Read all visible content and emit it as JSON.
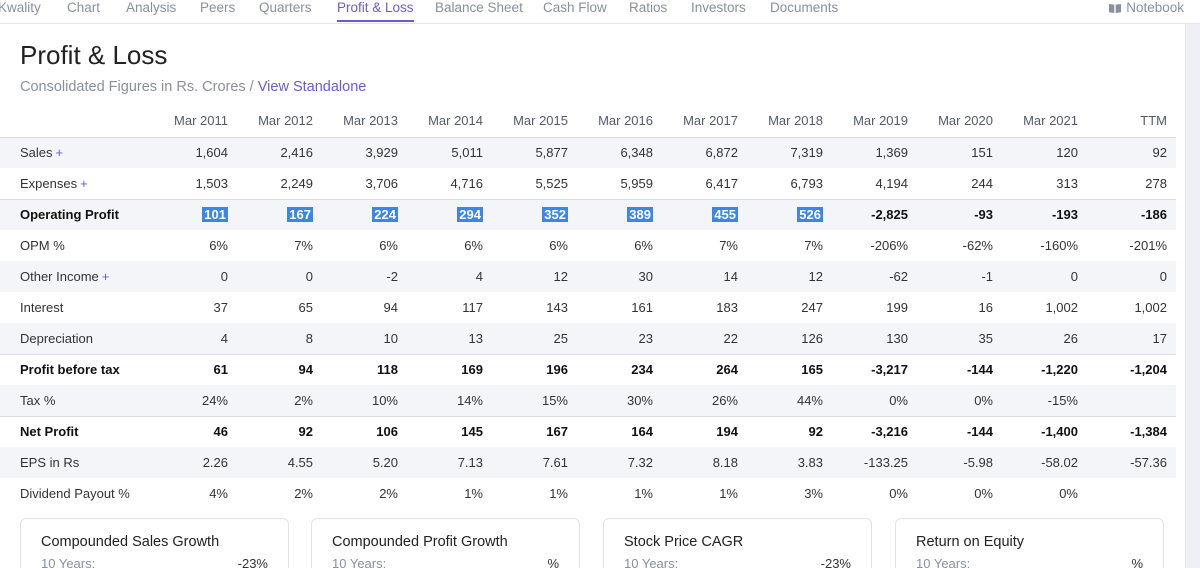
{
  "nav": {
    "tabs": [
      {
        "label": "Kwality"
      },
      {
        "label": "Chart"
      },
      {
        "label": "Analysis"
      },
      {
        "label": "Peers"
      },
      {
        "label": "Quarters"
      },
      {
        "label": "Profit & Loss"
      },
      {
        "label": "Balance Sheet"
      },
      {
        "label": "Cash Flow"
      },
      {
        "label": "Ratios"
      },
      {
        "label": "Investors"
      },
      {
        "label": "Documents"
      }
    ],
    "active_tab": "Profit & Loss",
    "notebook_label": "Notebook"
  },
  "section": {
    "title": "Profit & Loss",
    "subtitle": "Consolidated Figures in Rs. Crores / ",
    "link": "View Standalone"
  },
  "table": {
    "columns": [
      "",
      "Mar 2011",
      "Mar 2012",
      "Mar 2013",
      "Mar 2014",
      "Mar 2015",
      "Mar 2016",
      "Mar 2017",
      "Mar 2018",
      "Mar 2019",
      "Mar 2020",
      "Mar 2021",
      "TTM"
    ],
    "rows": [
      {
        "label": "Sales",
        "plus": "+",
        "values": [
          "1,604",
          "2,416",
          "3,929",
          "5,011",
          "5,877",
          "6,348",
          "6,872",
          "7,319",
          "1,369",
          "151",
          "120",
          "92"
        ]
      },
      {
        "label": "Expenses",
        "plus": "+",
        "values": [
          "1,503",
          "2,249",
          "3,706",
          "4,716",
          "5,525",
          "5,959",
          "6,417",
          "6,793",
          "4,194",
          "244",
          "313",
          "278"
        ]
      },
      {
        "label": "Operating Profit",
        "values": [
          "101",
          "167",
          "224",
          "294",
          "352",
          "389",
          "455",
          "526",
          "-2,825",
          "-93",
          "-193",
          "-186"
        ]
      },
      {
        "label": "OPM %",
        "values": [
          "6%",
          "7%",
          "6%",
          "6%",
          "6%",
          "6%",
          "7%",
          "7%",
          "-206%",
          "-62%",
          "-160%",
          "-201%"
        ]
      },
      {
        "label": "Other Income",
        "plus": "+",
        "values": [
          "0",
          "0",
          "-2",
          "4",
          "12",
          "30",
          "14",
          "12",
          "-62",
          "-1",
          "0",
          "0"
        ]
      },
      {
        "label": "Interest",
        "values": [
          "37",
          "65",
          "94",
          "117",
          "143",
          "161",
          "183",
          "247",
          "199",
          "16",
          "1,002",
          "1,002"
        ]
      },
      {
        "label": "Depreciation",
        "values": [
          "4",
          "8",
          "10",
          "13",
          "25",
          "23",
          "22",
          "126",
          "130",
          "35",
          "26",
          "17"
        ]
      },
      {
        "label": "Profit before tax",
        "values": [
          "61",
          "94",
          "118",
          "169",
          "196",
          "234",
          "264",
          "165",
          "-3,217",
          "-144",
          "-1,220",
          "-1,204"
        ]
      },
      {
        "label": "Tax %",
        "values": [
          "24%",
          "2%",
          "10%",
          "14%",
          "15%",
          "30%",
          "26%",
          "44%",
          "0%",
          "0%",
          "-15%",
          ""
        ]
      },
      {
        "label": "Net Profit",
        "values": [
          "46",
          "92",
          "106",
          "145",
          "167",
          "164",
          "194",
          "92",
          "-3,216",
          "-144",
          "-1,400",
          "-1,384"
        ]
      },
      {
        "label": "EPS in Rs",
        "values": [
          "2.26",
          "4.55",
          "5.20",
          "7.13",
          "7.61",
          "7.32",
          "8.18",
          "3.83",
          "-133.25",
          "-5.98",
          "-58.02",
          "-57.36"
        ]
      },
      {
        "label": "Dividend Payout %",
        "values": [
          "4%",
          "2%",
          "2%",
          "1%",
          "1%",
          "1%",
          "1%",
          "3%",
          "0%",
          "0%",
          "0%",
          ""
        ]
      }
    ]
  },
  "cards": [
    {
      "title": "Compounded Sales Growth",
      "label": "10 Years:",
      "value": "-23%"
    },
    {
      "title": "Compounded Profit Growth",
      "label": "10 Years:",
      "value": "%"
    },
    {
      "title": "Stock Price CAGR",
      "label": "10 Years:",
      "value": "-23%"
    },
    {
      "title": "Return on Equity",
      "label": "10 Years:",
      "value": "%"
    }
  ],
  "colors": {
    "accent": "#6a5ad8",
    "selection": "#3b86e6",
    "row_alt": "#f4f5f9"
  }
}
